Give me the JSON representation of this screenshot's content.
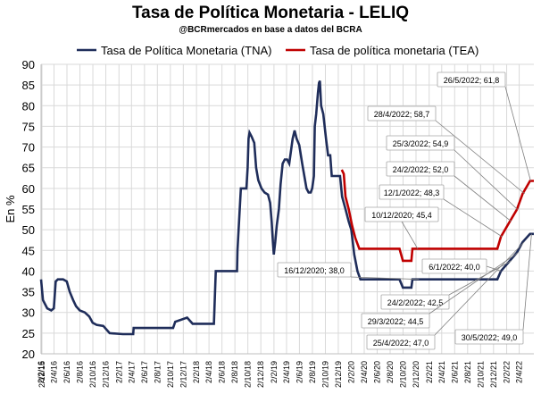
{
  "chart_data": {
    "type": "line",
    "title": "Tasa de Política Monetaria - LELIQ",
    "subtitle": "@BCRmercados en base a datos del BCRA",
    "ylabel": "En %",
    "xlabel": "",
    "ylim": [
      20,
      90
    ],
    "yticks": [
      "20",
      "25",
      "30",
      "35",
      "40",
      "45",
      "50",
      "55",
      "60",
      "65",
      "70",
      "75",
      "80",
      "85",
      "90"
    ],
    "xlim": [
      "2016-02-01",
      "2022-06-10"
    ],
    "xticks": [
      "2/12/15",
      "2/2/16",
      "2/4/16",
      "2/6/16",
      "2/8/16",
      "2/10/16",
      "2/12/16",
      "2/2/17",
      "2/4/17",
      "2/6/17",
      "2/8/17",
      "2/10/17",
      "2/12/17",
      "2/2/18",
      "2/4/18",
      "2/6/18",
      "2/8/18",
      "2/10/18",
      "2/12/18",
      "2/2/19",
      "2/4/19",
      "2/6/19",
      "2/8/19",
      "2/10/19",
      "2/12/19",
      "2/2/20",
      "2/4/20",
      "2/6/20",
      "2/8/20",
      "2/10/20",
      "2/12/20",
      "2/2/21",
      "2/4/21",
      "2/6/21",
      "2/8/21",
      "2/10/21",
      "2/12/21",
      "2/2/22",
      "2/4/22"
    ],
    "grid": true,
    "legend_position": "top",
    "series": [
      {
        "name": "Tasa de Política Monetaria (TNA)",
        "color": "#1f2d5a",
        "points": [
          [
            "2016-02-01",
            38.0
          ],
          [
            "2016-02-10",
            33.0
          ],
          [
            "2016-02-20",
            32.0
          ],
          [
            "2016-03-01",
            31.0
          ],
          [
            "2016-03-20",
            30.5
          ],
          [
            "2016-04-01",
            31.0
          ],
          [
            "2016-04-10",
            37.5
          ],
          [
            "2016-04-20",
            38.0
          ],
          [
            "2016-05-15",
            38.0
          ],
          [
            "2016-06-01",
            37.5
          ],
          [
            "2016-06-15",
            35.0
          ],
          [
            "2016-07-01",
            33.0
          ],
          [
            "2016-07-15",
            31.5
          ],
          [
            "2016-08-01",
            30.5
          ],
          [
            "2016-08-25",
            30.0
          ],
          [
            "2016-09-15",
            29.0
          ],
          [
            "2016-10-01",
            27.5
          ],
          [
            "2016-10-20",
            27.0
          ],
          [
            "2016-11-20",
            26.75
          ],
          [
            "2016-12-20",
            25.0
          ],
          [
            "2017-02-20",
            24.75
          ],
          [
            "2017-04-10",
            24.75
          ],
          [
            "2017-04-12",
            26.25
          ],
          [
            "2017-07-15",
            26.25
          ],
          [
            "2017-08-01",
            26.25
          ],
          [
            "2017-10-15",
            26.25
          ],
          [
            "2017-10-25",
            27.75
          ],
          [
            "2017-12-20",
            28.75
          ],
          [
            "2018-01-15",
            27.25
          ],
          [
            "2018-04-25",
            27.25
          ],
          [
            "2018-04-27",
            30.25
          ],
          [
            "2018-05-04",
            40.0
          ],
          [
            "2018-08-12",
            40.0
          ],
          [
            "2018-08-14",
            45.0
          ],
          [
            "2018-08-30",
            60.0
          ],
          [
            "2018-09-25",
            60.0
          ],
          [
            "2018-10-01",
            65.0
          ],
          [
            "2018-10-05",
            72.0
          ],
          [
            "2018-10-10",
            73.5
          ],
          [
            "2018-10-20",
            72.5
          ],
          [
            "2018-11-01",
            71.0
          ],
          [
            "2018-11-10",
            65.0
          ],
          [
            "2018-11-20",
            62.0
          ],
          [
            "2018-12-05",
            60.0
          ],
          [
            "2018-12-20",
            59.0
          ],
          [
            "2019-01-05",
            58.5
          ],
          [
            "2019-01-15",
            56.5
          ],
          [
            "2019-01-22",
            52.0
          ],
          [
            "2019-01-28",
            47.0
          ],
          [
            "2019-02-01",
            44.0
          ],
          [
            "2019-02-08",
            47.0
          ],
          [
            "2019-02-15",
            51.0
          ],
          [
            "2019-02-25",
            55.0
          ],
          [
            "2019-03-05",
            61.0
          ],
          [
            "2019-03-15",
            66.0
          ],
          [
            "2019-03-25",
            67.0
          ],
          [
            "2019-04-05",
            67.0
          ],
          [
            "2019-04-15",
            66.0
          ],
          [
            "2019-05-01",
            72.0
          ],
          [
            "2019-05-10",
            74.0
          ],
          [
            "2019-05-20",
            72.0
          ],
          [
            "2019-06-01",
            70.5
          ],
          [
            "2019-06-15",
            66.0
          ],
          [
            "2019-06-25",
            63.0
          ],
          [
            "2019-07-05",
            60.0
          ],
          [
            "2019-07-15",
            59.0
          ],
          [
            "2019-07-25",
            59.0
          ],
          [
            "2019-08-01",
            60.0
          ],
          [
            "2019-08-09",
            63.0
          ],
          [
            "2019-08-13",
            75.0
          ],
          [
            "2019-08-20",
            78.0
          ],
          [
            "2019-08-28",
            83.0
          ],
          [
            "2019-09-02",
            85.5
          ],
          [
            "2019-09-06",
            86.0
          ],
          [
            "2019-09-12",
            80.0
          ],
          [
            "2019-09-22",
            78.0
          ],
          [
            "2019-10-05",
            72.0
          ],
          [
            "2019-10-15",
            68.0
          ],
          [
            "2019-10-25",
            68.0
          ],
          [
            "2019-11-01",
            63.0
          ],
          [
            "2019-12-10",
            63.0
          ],
          [
            "2019-12-20",
            58.0
          ],
          [
            "2020-01-05",
            55.0
          ],
          [
            "2020-01-20",
            52.0
          ],
          [
            "2020-02-01",
            50.0
          ],
          [
            "2020-02-15",
            44.0
          ],
          [
            "2020-03-01",
            40.0
          ],
          [
            "2020-03-15",
            38.0
          ],
          [
            "2020-06-01",
            38.0
          ],
          [
            "2020-09-15",
            38.0
          ],
          [
            "2020-10-01",
            36.0
          ],
          [
            "2020-11-10",
            36.0
          ],
          [
            "2020-11-15",
            38.0
          ],
          [
            "2021-06-01",
            38.0
          ],
          [
            "2021-12-20",
            38.0
          ],
          [
            "2022-01-06",
            40.0
          ],
          [
            "2022-02-17",
            42.5
          ],
          [
            "2022-03-22",
            44.5
          ],
          [
            "2022-04-18",
            47.0
          ],
          [
            "2022-05-23",
            49.0
          ],
          [
            "2022-06-10",
            49.0
          ]
        ]
      },
      {
        "name": "Tasa de política monetaria (TEA)",
        "color": "#c00000",
        "points": [
          [
            "2019-12-18",
            64.5
          ],
          [
            "2019-12-28",
            63.5
          ],
          [
            "2020-01-05",
            58.0
          ],
          [
            "2020-01-20",
            55.0
          ],
          [
            "2020-02-05",
            51.0
          ],
          [
            "2020-02-20",
            48.0
          ],
          [
            "2020-03-10",
            45.4
          ],
          [
            "2020-09-15",
            45.4
          ],
          [
            "2020-10-01",
            42.5
          ],
          [
            "2020-11-10",
            42.5
          ],
          [
            "2020-11-15",
            45.4
          ],
          [
            "2021-12-20",
            45.4
          ],
          [
            "2022-01-06",
            48.3
          ],
          [
            "2022-02-17",
            52.0
          ],
          [
            "2022-03-22",
            54.9
          ],
          [
            "2022-04-18",
            58.7
          ],
          [
            "2022-05-23",
            61.8
          ],
          [
            "2022-06-10",
            61.8
          ]
        ]
      }
    ],
    "annotations": [
      {
        "label": "26/5/2022; 61,8"
      },
      {
        "label": "28/4/2022; 58,7"
      },
      {
        "label": "25/3/2022; 54,9"
      },
      {
        "label": "24/2/2022; 52,0"
      },
      {
        "label": "12/1/2022; 48,3"
      },
      {
        "label": "10/12/2020; 45,4"
      },
      {
        "label": "6/1/2022; 40,0"
      },
      {
        "label": "16/12/2020; 38,0"
      },
      {
        "label": "24/2/2022; 42,5"
      },
      {
        "label": "29/3/2022; 44,5"
      },
      {
        "label": "25/4/2022; 47,0"
      },
      {
        "label": "30/5/2022; 49,0"
      }
    ]
  }
}
